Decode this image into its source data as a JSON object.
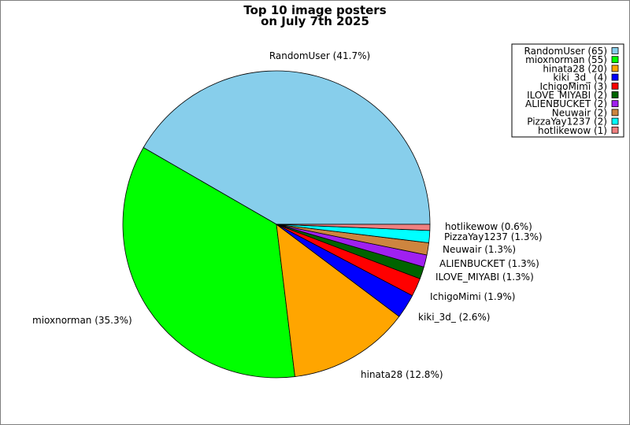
{
  "chart_data": {
    "type": "pie",
    "title": [
      "Top 10 image posters",
      "on July 7th 2025"
    ],
    "slices": [
      {
        "name": "RandomUser",
        "count": 65,
        "percent_label": "RandomUser (41.7%)",
        "legend_label": "RandomUser (65)",
        "color": "#87ceeb"
      },
      {
        "name": "mioxnorman",
        "count": 55,
        "percent_label": "mioxnorman (35.3%)",
        "legend_label": "mioxnorman (55)",
        "color": "#00ff00"
      },
      {
        "name": "hinata28",
        "count": 20,
        "percent_label": "hinata28 (12.8%)",
        "legend_label": "hinata28 (20)",
        "color": "#ffa500"
      },
      {
        "name": "kiki_3d_",
        "count": 4,
        "percent_label": "kiki_3d_ (2.6%)",
        "legend_label": "kiki_3d_ (4)",
        "color": "#0000ff"
      },
      {
        "name": "IchigoMimi",
        "count": 3,
        "percent_label": "IchigoMimi (1.9%)",
        "legend_label": "IchigoMimi (3)",
        "color": "#ff0000"
      },
      {
        "name": "ILOVE_MIYABI",
        "count": 2,
        "percent_label": "ILOVE_MIYABI (1.3%)",
        "legend_label": "ILOVE_MIYABI (2)",
        "color": "#006400"
      },
      {
        "name": "ALIENBUCKET",
        "count": 2,
        "percent_label": "ALIENBUCKET (1.3%)",
        "legend_label": "ALIENBUCKET (2)",
        "color": "#a020f0"
      },
      {
        "name": "Neuwair",
        "count": 2,
        "percent_label": "Neuwair (1.3%)",
        "legend_label": "Neuwair (2)",
        "color": "#cd853f"
      },
      {
        "name": "PizzaYay1237",
        "count": 2,
        "percent_label": "PizzaYay1237 (1.3%)",
        "legend_label": "PizzaYay1237 (2)",
        "color": "#00ffff"
      },
      {
        "name": "hotlikewow",
        "count": 1,
        "percent_label": "hotlikewow (0.6%)",
        "legend_label": "hotlikewow (1)",
        "color": "#f08080"
      }
    ],
    "start": "3 o'clock",
    "direction": "counterclockwise",
    "legend_position": "top-right"
  }
}
